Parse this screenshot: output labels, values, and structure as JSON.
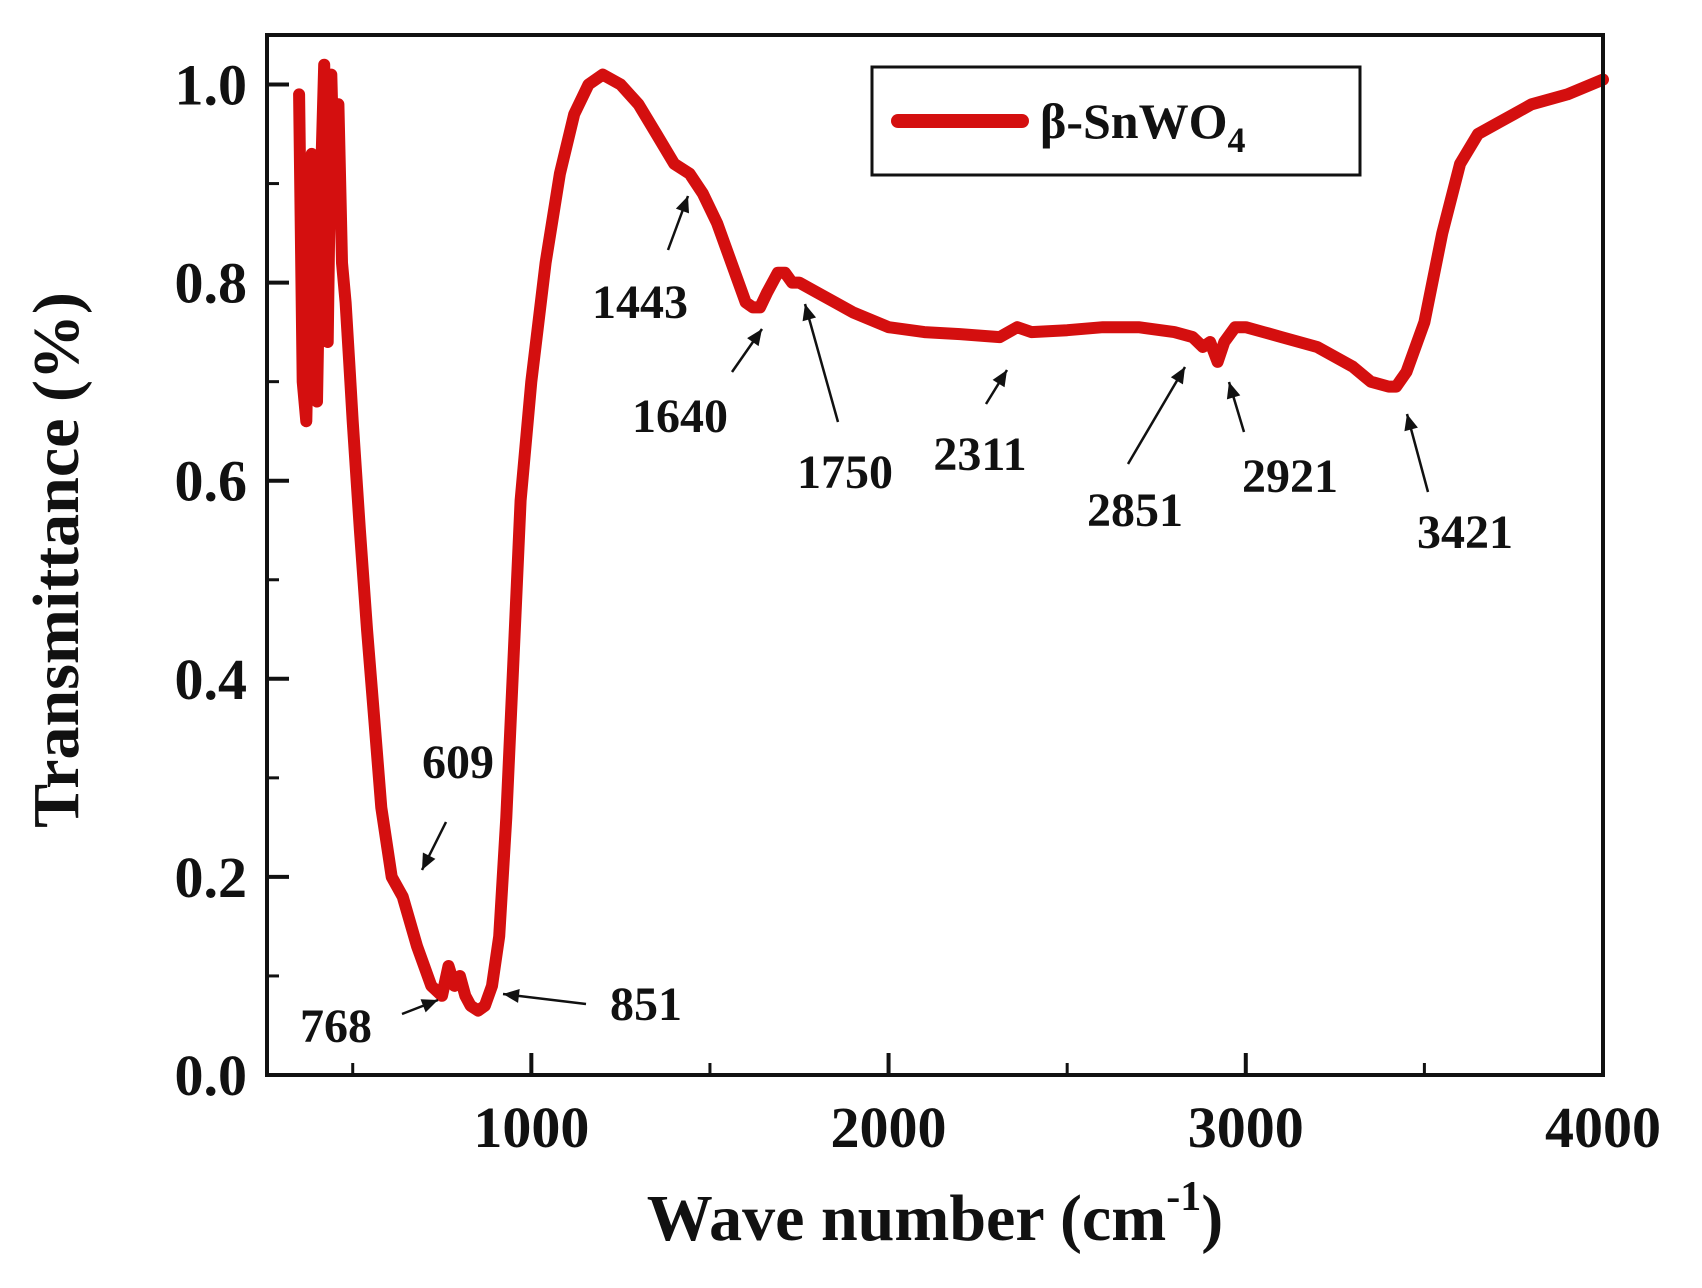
{
  "chart_data": {
    "type": "line",
    "title": "",
    "xlabel": "Wave number (cm",
    "xlabel_sup": "-1",
    "xlabel_close": ")",
    "ylabel": "Transmittance (%)",
    "xlim": [
      260,
      4000
    ],
    "ylim": [
      0,
      1.05
    ],
    "x_ticks": [
      1000,
      2000,
      3000,
      4000
    ],
    "x_tick_labels": [
      "1000",
      "2000",
      "3000",
      "4000"
    ],
    "y_ticks": [
      0.0,
      0.2,
      0.4,
      0.6,
      0.8,
      1.0
    ],
    "y_tick_labels": [
      "0.0",
      "0.2",
      "0.4",
      "0.6",
      "0.8",
      "1.0"
    ],
    "grid": false,
    "legend_position": "top-right",
    "series": [
      {
        "name": "β-SnWO",
        "name_sub": "4",
        "color": "#d40f0f",
        "x": [
          350,
          360,
          370,
          385,
          400,
          410,
          420,
          430,
          440,
          450,
          460,
          470,
          480,
          490,
          500,
          520,
          540,
          560,
          580,
          609,
          640,
          680,
          720,
          750,
          768,
          785,
          800,
          815,
          830,
          851,
          870,
          890,
          910,
          930,
          950,
          970,
          1000,
          1040,
          1080,
          1120,
          1160,
          1200,
          1250,
          1300,
          1350,
          1400,
          1443,
          1480,
          1520,
          1560,
          1600,
          1620,
          1640,
          1660,
          1690,
          1710,
          1730,
          1750,
          1800,
          1850,
          1900,
          2000,
          2100,
          2200,
          2311,
          2360,
          2400,
          2500,
          2600,
          2700,
          2800,
          2851,
          2880,
          2900,
          2921,
          2940,
          2970,
          3000,
          3050,
          3100,
          3200,
          3300,
          3350,
          3400,
          3421,
          3450,
          3500,
          3550,
          3600,
          3650,
          3700,
          3750,
          3800,
          3900,
          4000
        ],
        "y": [
          0.99,
          0.7,
          0.66,
          0.93,
          0.68,
          0.89,
          1.02,
          0.74,
          1.01,
          0.87,
          0.98,
          0.82,
          0.78,
          0.72,
          0.66,
          0.55,
          0.45,
          0.36,
          0.27,
          0.2,
          0.18,
          0.13,
          0.09,
          0.08,
          0.11,
          0.09,
          0.1,
          0.08,
          0.07,
          0.065,
          0.07,
          0.09,
          0.14,
          0.26,
          0.42,
          0.58,
          0.7,
          0.82,
          0.91,
          0.97,
          1.0,
          1.01,
          1.0,
          0.98,
          0.95,
          0.92,
          0.91,
          0.89,
          0.86,
          0.82,
          0.78,
          0.775,
          0.775,
          0.79,
          0.81,
          0.81,
          0.8,
          0.8,
          0.79,
          0.78,
          0.77,
          0.755,
          0.75,
          0.748,
          0.745,
          0.755,
          0.75,
          0.752,
          0.755,
          0.755,
          0.75,
          0.745,
          0.735,
          0.74,
          0.72,
          0.74,
          0.755,
          0.755,
          0.75,
          0.745,
          0.735,
          0.715,
          0.7,
          0.695,
          0.695,
          0.71,
          0.76,
          0.85,
          0.92,
          0.95,
          0.96,
          0.97,
          0.98,
          0.99,
          1.005
        ]
      }
    ],
    "annotations": [
      {
        "label": "1443",
        "x": 1443,
        "y": 0.91
      },
      {
        "label": "1640",
        "x": 1640,
        "y": 0.775
      },
      {
        "label": "1750",
        "x": 1750,
        "y": 0.8
      },
      {
        "label": "2311",
        "x": 2311,
        "y": 0.745
      },
      {
        "label": "2851",
        "x": 2851,
        "y": 0.745
      },
      {
        "label": "2921",
        "x": 2921,
        "y": 0.72
      },
      {
        "label": "3421",
        "x": 3421,
        "y": 0.695
      },
      {
        "label": "609",
        "x": 609,
        "y": 0.2
      },
      {
        "label": "768",
        "x": 768,
        "y": 0.08
      },
      {
        "label": "851",
        "x": 851,
        "y": 0.065
      }
    ]
  }
}
